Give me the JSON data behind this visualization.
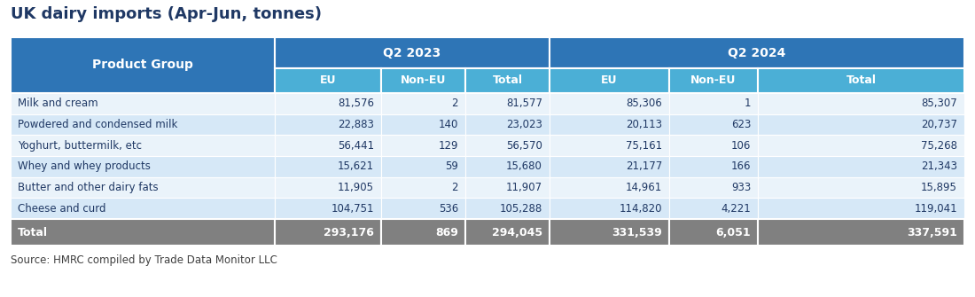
{
  "title": "UK dairy imports (Apr-Jun, tonnes)",
  "source": "Source: HMRC compiled by Trade Data Monitor LLC",
  "col_header_1": "Q2 2023",
  "col_header_2": "Q2 2024",
  "sub_headers": [
    "EU",
    "Non-EU",
    "Total",
    "EU",
    "Non-EU",
    "Total"
  ],
  "row_header": "Product Group",
  "rows": [
    [
      "Milk and cream",
      "81,576",
      "2",
      "81,577",
      "85,306",
      "1",
      "85,307"
    ],
    [
      "Powdered and condensed milk",
      "22,883",
      "140",
      "23,023",
      "20,113",
      "623",
      "20,737"
    ],
    [
      "Yoghurt, buttermilk, etc",
      "56,441",
      "129",
      "56,570",
      "75,161",
      "106",
      "75,268"
    ],
    [
      "Whey and whey products",
      "15,621",
      "59",
      "15,680",
      "21,177",
      "166",
      "21,343"
    ],
    [
      "Butter and other dairy fats",
      "11,905",
      "2",
      "11,907",
      "14,961",
      "933",
      "15,895"
    ],
    [
      "Cheese and curd",
      "104,751",
      "536",
      "105,288",
      "114,820",
      "4,221",
      "119,041"
    ]
  ],
  "total_row": [
    "Total",
    "293,176",
    "869",
    "294,045",
    "331,539",
    "6,051",
    "337,591"
  ],
  "color_header_dark": "#2E75B6",
  "color_header_medium": "#4BAFD6",
  "color_row_light": "#D6E8F7",
  "color_row_lighter": "#EAF3FA",
  "color_total_row": "#808080",
  "color_title": "#1F3864",
  "color_source": "#404040",
  "color_header_text": "#FFFFFF",
  "color_total_text": "#FFFFFF",
  "color_data_text": "#1F3864",
  "color_product_text": "#1F3864",
  "title_fontsize": 13,
  "header1_fontsize": 10,
  "header2_fontsize": 9,
  "data_fontsize": 8.5,
  "source_fontsize": 8.5
}
